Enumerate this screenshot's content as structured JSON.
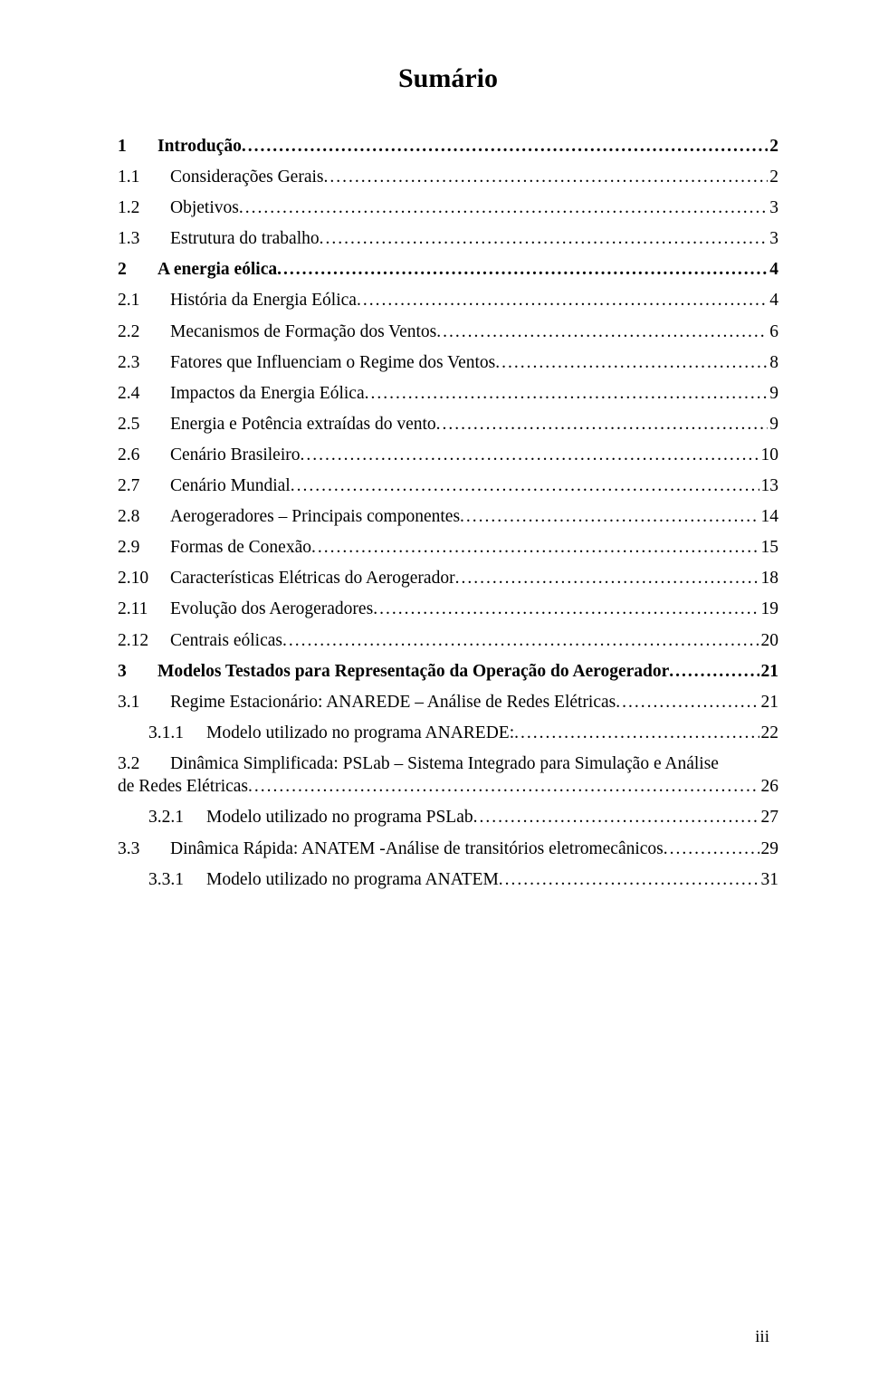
{
  "title": "Sumário",
  "colors": {
    "text": "#000000",
    "background": "#ffffff"
  },
  "typography": {
    "title_fontsize_pt": 22,
    "body_fontsize_pt": 14,
    "font_family": "Times New Roman"
  },
  "page_number": "iii",
  "toc": [
    {
      "level": 1,
      "num": "1",
      "label": "Introdução",
      "page": "2"
    },
    {
      "level": 2,
      "num": "1.1",
      "label": "Considerações Gerais",
      "page": "2"
    },
    {
      "level": 2,
      "num": "1.2",
      "label": "Objetivos",
      "page": "3"
    },
    {
      "level": 2,
      "num": "1.3",
      "label": "Estrutura do trabalho",
      "page": "3"
    },
    {
      "level": 1,
      "num": "2",
      "label": "A energia eólica",
      "page": "4"
    },
    {
      "level": 2,
      "num": "2.1",
      "label": "História da Energia Eólica",
      "page": "4"
    },
    {
      "level": 2,
      "num": "2.2",
      "label": "Mecanismos de Formação dos Ventos",
      "page": "6"
    },
    {
      "level": 2,
      "num": "2.3",
      "label": "Fatores que Influenciam o Regime dos Ventos",
      "page": "8"
    },
    {
      "level": 2,
      "num": "2.4",
      "label": "Impactos da Energia Eólica",
      "page": "9"
    },
    {
      "level": 2,
      "num": "2.5",
      "label": "Energia e Potência extraídas do vento",
      "page": "9"
    },
    {
      "level": 2,
      "num": "2.6",
      "label": "Cenário Brasileiro",
      "page": "10"
    },
    {
      "level": 2,
      "num": "2.7",
      "label": "Cenário Mundial",
      "page": "13"
    },
    {
      "level": 2,
      "num": "2.8",
      "label": "Aerogeradores – Principais componentes",
      "page": "14"
    },
    {
      "level": 2,
      "num": "2.9",
      "label": "Formas de Conexão",
      "page": "15"
    },
    {
      "level": 2,
      "num": "2.10",
      "label": "Características Elétricas do Aerogerador",
      "page": "18"
    },
    {
      "level": 2,
      "num": "2.11",
      "label": "Evolução dos Aerogeradores",
      "page": "19"
    },
    {
      "level": 2,
      "num": "2.12",
      "label": "Centrais eólicas",
      "page": "20"
    },
    {
      "level": 1,
      "num": "3",
      "label": "Modelos Testados para Representação da Operação do Aerogerador",
      "page": "21"
    },
    {
      "level": 2,
      "num": "3.1",
      "label": "Regime Estacionário: ANAREDE – Análise de Redes Elétricas",
      "page": "21"
    },
    {
      "level": 3,
      "num": "3.1.1",
      "label": "Modelo utilizado no programa ANAREDE:",
      "page": "22"
    },
    {
      "level": 2,
      "num": "3.2",
      "label": "Dinâmica Simplificada: PSLab – Sistema Integrado para Simulação e Análise",
      "label2": "de Redes Elétricas",
      "page": "26",
      "wrap": true
    },
    {
      "level": 3,
      "num": "3.2.1",
      "label": "Modelo utilizado no programa PSLab",
      "page": "27"
    },
    {
      "level": 2,
      "num": "3.3",
      "label": "Dinâmica Rápida: ANATEM -Análise de transitórios eletromecânicos",
      "page": "29"
    },
    {
      "level": 3,
      "num": "3.3.1",
      "label": "Modelo utilizado no programa ANATEM",
      "page": "31"
    }
  ]
}
